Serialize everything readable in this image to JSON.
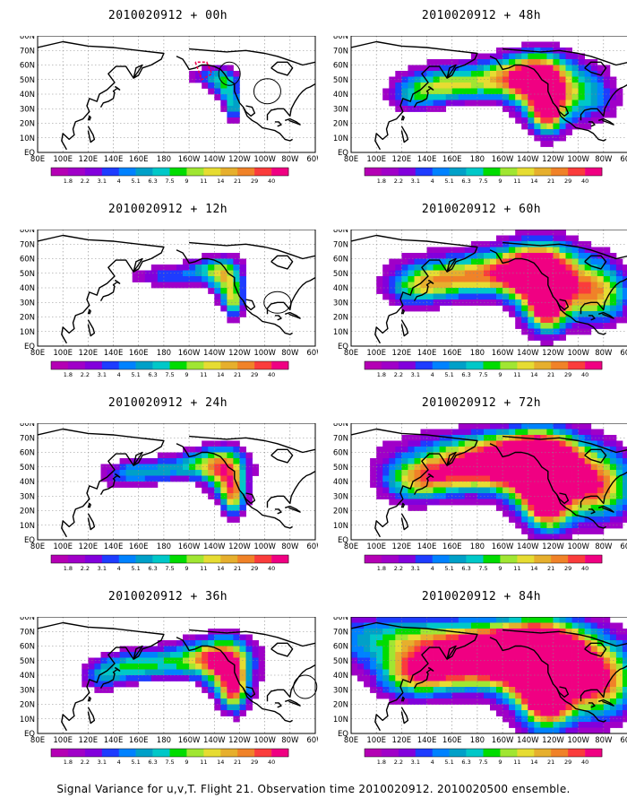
{
  "panels": [
    {
      "title": "2010020912 + 00h",
      "intensity": 0
    },
    {
      "title": "2010020912 + 48h",
      "intensity": 4
    },
    {
      "title": "2010020912 + 12h",
      "intensity": 1
    },
    {
      "title": "2010020912 + 60h",
      "intensity": 5
    },
    {
      "title": "2010020912 + 24h",
      "intensity": 2
    },
    {
      "title": "2010020912 + 72h",
      "intensity": 6
    },
    {
      "title": "2010020912 + 36h",
      "intensity": 3
    },
    {
      "title": "2010020912 + 84h",
      "intensity": 7
    }
  ],
  "lat_labels": [
    "80N",
    "70N",
    "60N",
    "50N",
    "40N",
    "30N",
    "20N",
    "10N",
    "EQ"
  ],
  "lon_labels": [
    "80E",
    "100E",
    "120E",
    "140E",
    "160E",
    "180",
    "160W",
    "140W",
    "120W",
    "100W",
    "80W",
    "60W"
  ],
  "colorbar": {
    "levels": [
      "1.8",
      "2.2",
      "3.1",
      "4",
      "5.1",
      "6.3",
      "7.5",
      "9",
      "11",
      "14",
      "21",
      "29",
      "40"
    ],
    "colors": [
      "#a000c8",
      "#8200dc",
      "#1e3cff",
      "#0082ff",
      "#00a0c8",
      "#00c8c8",
      "#00dc00",
      "#a0e632",
      "#e6dc32",
      "#e6af2d",
      "#f08228",
      "#fa3c3c",
      "#f00082"
    ]
  },
  "footer": "Signal Variance for u,v,T. Flight 21. Observation time 2010020912. 2010020500 ensemble."
}
